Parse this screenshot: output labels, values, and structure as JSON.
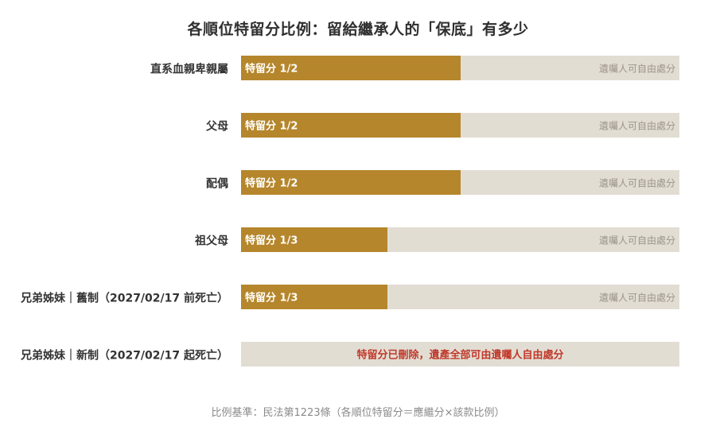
{
  "chart_data": {
    "type": "bar",
    "title": "各順位特留分比例：留給繼承人的「保底」有多少",
    "categories": [
      "直系血親卑親屬",
      "父母",
      "配偶",
      "祖父母",
      "兄弟姊妹｜舊制（2027/02/17 前死亡）",
      "兄弟姊妹｜新制（2027/02/17 起死亡）"
    ],
    "series": [
      {
        "values": [
          0.5,
          0.5,
          0.5,
          0.3333,
          0.3333,
          0
        ],
        "labels": [
          "特留分 1/2",
          "特留分 1/2",
          "特留分 1/2",
          "特留分 1/3",
          "特留分 1/3",
          ""
        ]
      }
    ],
    "remainder_label": "遺囑人可自由處分",
    "abolished_note": "特留分已刪除，遺產全部可由遺囑人自由處分",
    "xlim": [
      0,
      1
    ],
    "colors": {
      "share": "#b5862b",
      "remainder": "#e2ddd3",
      "share_text": "#ffffff",
      "remainder_text": "#9b9489",
      "note_text": "#c0392b",
      "category_text": "#333333"
    }
  },
  "footnote": "比例基準：民法第1223條（各順位特留分＝應繼分×該款比例）"
}
